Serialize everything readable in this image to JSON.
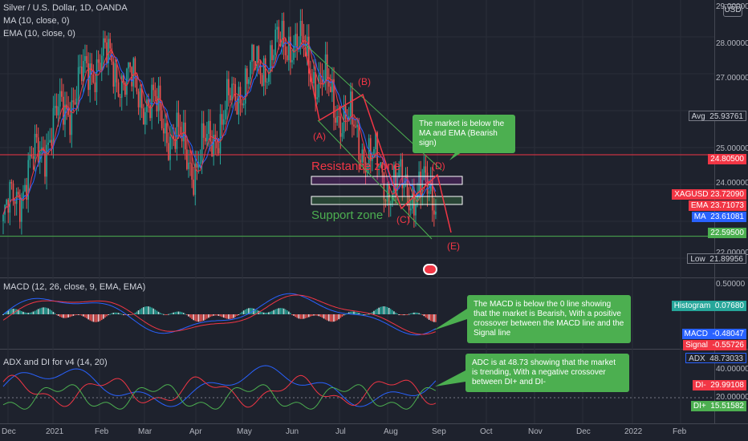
{
  "header": {
    "symbol_title": "Silver / U.S. Dollar, 1D, OANDA",
    "ma_legend": "MA (10, close, 0)",
    "ema_legend": "EMA (10, close, 0)",
    "currency_badge": "USD"
  },
  "price_axis": {
    "ticks": [
      "28.00000",
      "27.00000",
      "25.00000",
      "24.00000",
      "22.00000"
    ],
    "top_clip": "29.00000"
  },
  "price_tags": {
    "avg": {
      "label": "Avg",
      "value": "25.93761"
    },
    "resistance": {
      "value": "24.80500"
    },
    "xagusd": {
      "label": "XAGUSD",
      "value": "23.72090"
    },
    "ema": {
      "label": "EMA",
      "value": "23.71073"
    },
    "ma": {
      "label": "MA",
      "value": "23.61081"
    },
    "support": {
      "value": "22.59500"
    },
    "low": {
      "label": "Low",
      "value": "21.89956"
    }
  },
  "annotations": {
    "resistance_zone": "Resistance zone",
    "support_zone": "Support zone",
    "wave_a": "(A)",
    "wave_b": "(B)",
    "wave_c": "(C)",
    "wave_d": "(D)",
    "wave_e": "(E)",
    "callout_price": "The market is below the MA and EMA (Bearish sign)",
    "callout_macd": "The MACD is below the 0 line showing that the market is Bearish, With a positive crossover between the MACD line and the Signal line",
    "callout_adx": "ADC is at 48.73 showing that the market is trending, With a negative crossover between DI+ and DI-"
  },
  "macd_pane": {
    "legend": "MACD (12, 26, close, 9, EMA, EMA)",
    "axis_tick": "0.50000",
    "histogram": {
      "label": "Histogram",
      "value": "0.07680"
    },
    "macd": {
      "label": "MACD",
      "value": "-0.48047"
    },
    "signal": {
      "label": "Signal",
      "value": "-0.55726"
    }
  },
  "adx_pane": {
    "legend": "ADX and DI for v4 (14, 20)",
    "axis_ticks": [
      "40.00000",
      "20.00000"
    ],
    "adx": {
      "label": "ADX",
      "value": "48.73033"
    },
    "di_minus": {
      "label": "DI-",
      "value": "29.99108"
    },
    "di_plus": {
      "label": "DI+",
      "value": "15.51582"
    }
  },
  "time_axis": [
    "Dec",
    "2021",
    "Feb",
    "Mar",
    "Apr",
    "May",
    "Jun",
    "Jul",
    "Aug",
    "Sep",
    "Oct",
    "Nov",
    "Dec",
    "2022",
    "Feb"
  ],
  "colors": {
    "background": "#1e222d",
    "bull": "#26a69a",
    "bear": "#ef5350",
    "ma": "#2962ff",
    "ema": "#f23645",
    "resistance_line": "#f23645",
    "support_line": "#4caf50",
    "channel": "#4caf50",
    "callout": "#4caf50",
    "adx": "#2962ff",
    "di_minus": "#f23645",
    "di_plus": "#4caf50"
  },
  "chart_data": {
    "type": "line",
    "title": "Silver / U.S. Dollar, 1D, OANDA",
    "x": [
      "Dec",
      "2021",
      "Feb",
      "Mar",
      "Apr",
      "May",
      "Jun",
      "Jul",
      "Aug",
      "Sep"
    ],
    "series": [
      {
        "name": "XAGUSD",
        "values": [
          23.0,
          25.5,
          27.5,
          26.3,
          24.5,
          26.8,
          28.0,
          26.0,
          24.0,
          23.72
        ]
      },
      {
        "name": "MA",
        "values": [
          23.3,
          25.2,
          26.8,
          26.0,
          24.8,
          26.5,
          27.8,
          26.2,
          24.2,
          23.61
        ]
      },
      {
        "name": "EMA",
        "values": [
          23.4,
          25.3,
          26.9,
          26.1,
          24.9,
          26.6,
          27.7,
          26.1,
          24.1,
          23.71
        ]
      }
    ],
    "ylim": [
      21.5,
      29.0
    ],
    "levels": {
      "resistance": 24.805,
      "support": 22.595,
      "avg": 25.93761,
      "low": 21.89956
    },
    "indicators": {
      "macd": {
        "macd": -0.48047,
        "signal": -0.55726,
        "histogram": 0.0768
      },
      "adx": {
        "adx": 48.73033,
        "di_minus": 29.99108,
        "di_plus": 15.51582
      }
    },
    "grid": true
  }
}
